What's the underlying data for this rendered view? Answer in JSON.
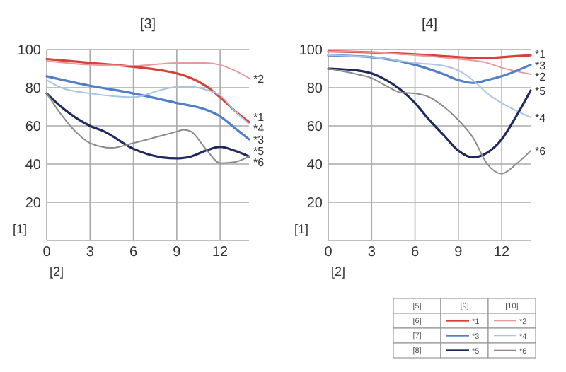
{
  "chart_data": [
    {
      "type": "line",
      "title": "[3]",
      "xlabel": "[2]",
      "ylabel": "[1]",
      "xlim": [
        0,
        14
      ],
      "ylim": [
        0,
        100
      ],
      "xticks": [
        0,
        3,
        6,
        9,
        12
      ],
      "yticks": [
        {
          "value": 0,
          "label": null
        },
        20,
        40,
        60,
        80,
        100
      ],
      "grid": true,
      "legend": false,
      "series": [
        {
          "name": "*1",
          "color": "#d9403a",
          "x": [
            0,
            3,
            6,
            8,
            9,
            10,
            11,
            12,
            13,
            14
          ],
          "values": [
            95,
            93,
            91,
            89,
            87.5,
            85,
            81,
            75,
            68,
            62
          ]
        },
        {
          "name": "*2",
          "color": "#e89a9a",
          "x": [
            0,
            3,
            6,
            9,
            11,
            12,
            13,
            14
          ],
          "values": [
            94,
            92,
            91.5,
            93,
            93,
            92,
            89,
            85
          ]
        },
        {
          "name": "*3",
          "color": "#4f7fc8",
          "x": [
            0,
            3,
            6,
            9,
            11,
            12,
            13,
            14
          ],
          "values": [
            86,
            81,
            77,
            72,
            68.5,
            65,
            59,
            53
          ]
        },
        {
          "name": "*4",
          "color": "#a8c4e6",
          "x": [
            0,
            1,
            3,
            6,
            8,
            9,
            10,
            11,
            12,
            13,
            14
          ],
          "values": [
            84,
            80,
            77,
            75,
            79,
            80.5,
            80.5,
            79,
            76,
            68,
            61
          ]
        },
        {
          "name": "*5",
          "color": "#1f2a5e",
          "x": [
            0,
            1,
            3,
            4,
            6,
            8,
            9,
            10,
            11,
            12,
            13,
            14
          ],
          "values": [
            77,
            70,
            60,
            57,
            48,
            43.5,
            43,
            44,
            47,
            49,
            47,
            44
          ]
        },
        {
          "name": "*6",
          "color": "#8a8a8a",
          "x": [
            0,
            1,
            2,
            3,
            4.5,
            6,
            8,
            9,
            9.5,
            10,
            11,
            12,
            13,
            14
          ],
          "values": [
            77,
            66,
            57,
            51,
            48.5,
            51,
            55,
            57,
            58,
            57,
            48,
            40.5,
            41,
            44
          ]
        }
      ]
    },
    {
      "type": "line",
      "title": "[4]",
      "xlabel": "[2]",
      "ylabel": "[1]",
      "xlim": [
        0,
        14
      ],
      "ylim": [
        0,
        100
      ],
      "xticks": [
        0,
        3,
        6,
        9,
        12
      ],
      "yticks": [
        {
          "value": 0,
          "label": null
        },
        20,
        40,
        60,
        80,
        100
      ],
      "grid": true,
      "legend": "bottom right",
      "legend_title": "[5]",
      "annotations": [
        "[6]",
        "[7]",
        "[8]",
        "[9]",
        "[10]"
      ],
      "series": [
        {
          "name": "*1",
          "color": "#d9403a",
          "x": [
            0,
            3,
            6,
            9,
            11,
            12,
            14
          ],
          "values": [
            99,
            98.5,
            97.5,
            96,
            95.5,
            96,
            97
          ]
        },
        {
          "name": "*2",
          "color": "#e89a9a",
          "x": [
            0,
            3,
            6,
            9,
            11,
            12,
            14
          ],
          "values": [
            99,
            98.5,
            97,
            95,
            93,
            90.5,
            87
          ]
        },
        {
          "name": "*3",
          "color": "#4f7fc8",
          "x": [
            0,
            3,
            6,
            8,
            9,
            10,
            11,
            12,
            14
          ],
          "values": [
            97,
            96,
            92,
            87,
            84,
            82.5,
            84,
            86,
            92
          ]
        },
        {
          "name": "*4",
          "color": "#a8c4e6",
          "x": [
            0,
            3,
            6,
            8,
            9,
            10,
            11,
            12,
            14
          ],
          "values": [
            97,
            96,
            93,
            91.5,
            89,
            84,
            77,
            72,
            64.5
          ]
        },
        {
          "name": "*5",
          "color": "#1f2a5e",
          "x": [
            0,
            2,
            3,
            4,
            5,
            6,
            7,
            8,
            9,
            10,
            11,
            12,
            13,
            14
          ],
          "values": [
            90,
            89,
            87.5,
            84,
            79,
            72,
            63,
            55,
            47,
            43.5,
            46,
            53,
            65,
            78.5
          ]
        },
        {
          "name": "*6",
          "color": "#8a8a8a",
          "x": [
            0,
            2,
            3,
            4,
            5,
            6,
            7,
            8,
            9,
            10,
            11,
            12,
            13,
            14
          ],
          "values": [
            90,
            87,
            85,
            81,
            77.5,
            77,
            75,
            70,
            63,
            54,
            40,
            35,
            40,
            47
          ]
        }
      ]
    }
  ]
}
